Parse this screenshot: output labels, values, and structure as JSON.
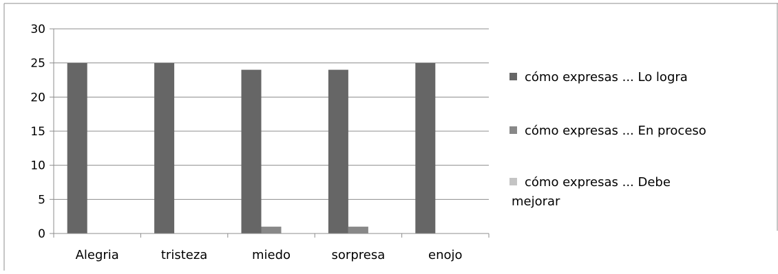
{
  "chart_data": {
    "type": "bar",
    "categories": [
      "Alegria",
      "tristeza",
      "miedo",
      "sorpresa",
      "enojo"
    ],
    "series": [
      {
        "name": "cómo expresas ... Lo logra",
        "values": [
          25,
          25,
          24,
          24,
          25
        ],
        "color": "#666666"
      },
      {
        "name": "cómo expresas ... En proceso",
        "values": [
          0,
          0,
          1,
          1,
          0
        ],
        "color": "#888888"
      },
      {
        "name": "cómo expresas ... Debe mejorar",
        "values": [
          0,
          0,
          0,
          0,
          0
        ],
        "color": "#c4c4c4"
      }
    ],
    "yticks": [
      0,
      5,
      10,
      15,
      20,
      25,
      30
    ],
    "ylim": [
      0,
      30
    ],
    "grid": true,
    "legend_position": "right",
    "legend_lines": [
      [
        "cómo expresas ... Lo logra"
      ],
      [
        "cómo expresas ... En proceso"
      ],
      [
        "cómo expresas ... Debe",
        "mejorar"
      ]
    ]
  }
}
